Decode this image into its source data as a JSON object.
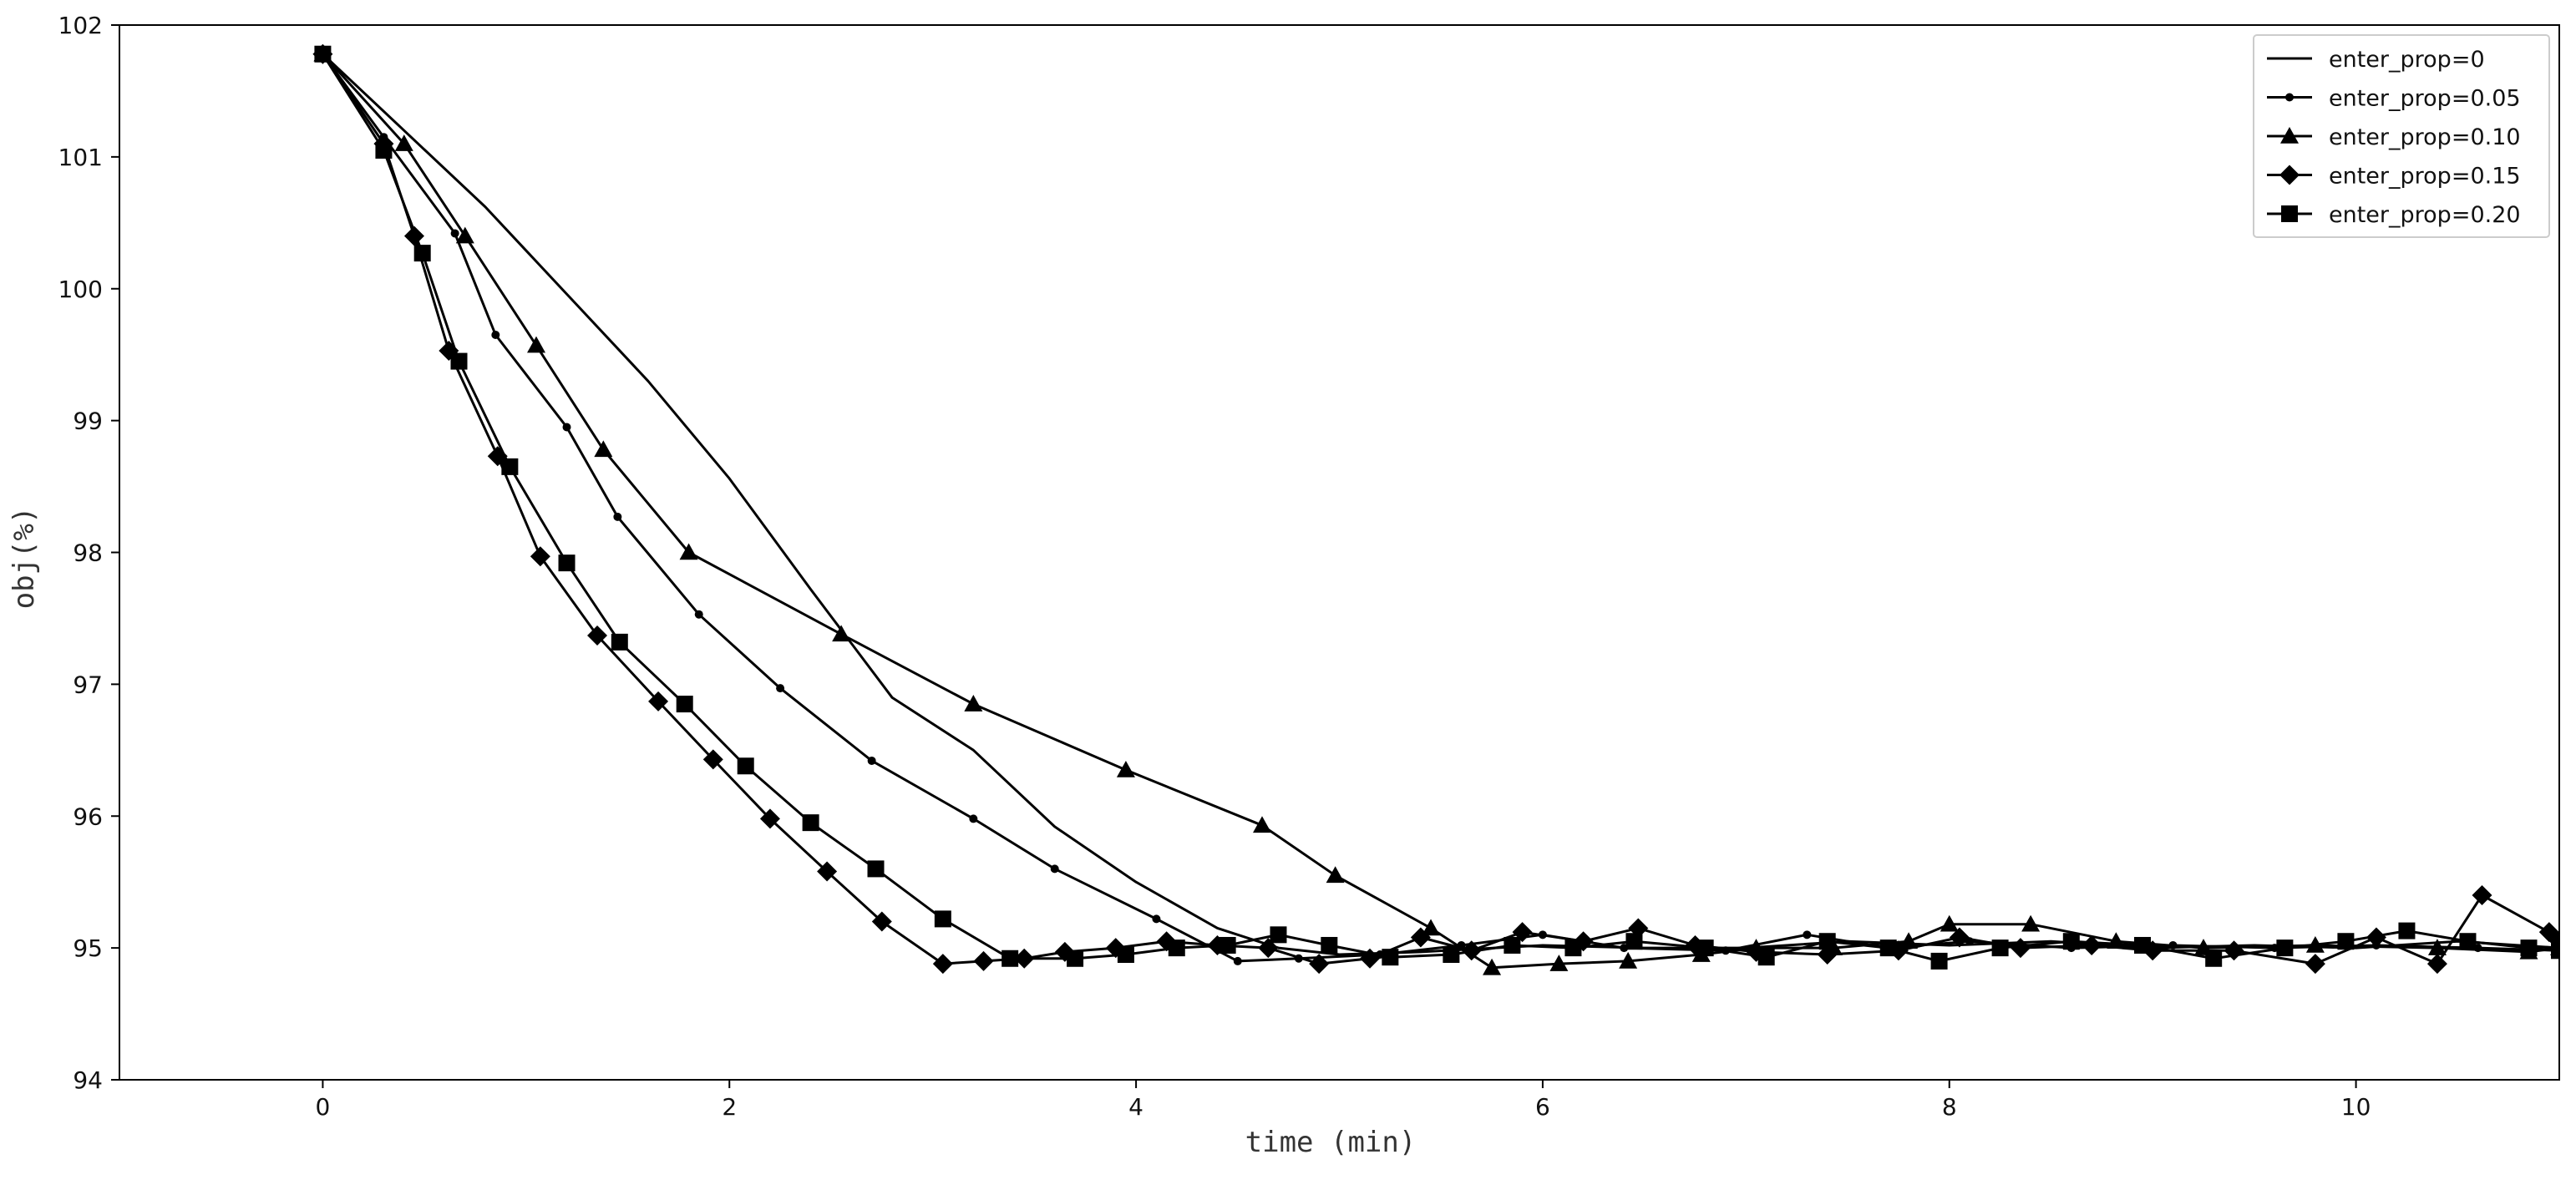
{
  "chart_data": {
    "type": "line",
    "xlabel": "time (min)",
    "ylabel": "obj(%)",
    "xlim": [
      -1.0,
      11.0
    ],
    "ylim": [
      94,
      102
    ],
    "xticks": [
      0,
      2,
      4,
      6,
      8,
      10
    ],
    "yticks": [
      94,
      95,
      96,
      97,
      98,
      99,
      100,
      101,
      102
    ],
    "legend": "top-right",
    "grid": false,
    "line_color": "#000000",
    "series": [
      {
        "name": "enter_prop=0",
        "marker": "none",
        "x": [
          0,
          0.4,
          0.8,
          1.2,
          1.6,
          2.0,
          2.4,
          2.8,
          3.2,
          3.6,
          4.0,
          4.4,
          4.7,
          5.0,
          5.4,
          6.0,
          6.5,
          7.0,
          7.5,
          8.0,
          8.5,
          9.0,
          9.5,
          10.0,
          10.5,
          11.0
        ],
        "y": [
          101.78,
          101.2,
          100.62,
          99.96,
          99.3,
          98.56,
          97.72,
          96.9,
          96.5,
          95.92,
          95.5,
          95.15,
          95.0,
          94.95,
          94.97,
          95.02,
          95.0,
          95.0,
          95.05,
          95.02,
          95.05,
          95.0,
          95.02,
          95.0,
          95.05,
          95.0
        ]
      },
      {
        "name": "enter_prop=0.05",
        "marker": "dot",
        "x": [
          0,
          0.3,
          0.65,
          0.85,
          1.2,
          1.45,
          1.85,
          2.25,
          2.7,
          3.2,
          3.6,
          4.1,
          4.5,
          4.8,
          5.2,
          5.6,
          6.0,
          6.4,
          6.9,
          7.3,
          7.7,
          8.1,
          8.6,
          9.1,
          9.6,
          10.1,
          10.6,
          11.0
        ],
        "y": [
          101.78,
          101.15,
          100.42,
          99.65,
          98.95,
          98.27,
          97.53,
          96.97,
          96.42,
          95.98,
          95.6,
          95.22,
          94.9,
          94.92,
          94.95,
          95.02,
          95.1,
          95.0,
          94.98,
          95.1,
          95.0,
          95.05,
          95.0,
          95.02,
          95.0,
          95.02,
          95.0,
          94.98
        ]
      },
      {
        "name": "enter_prop=0.10",
        "marker": "triangle",
        "x": [
          0,
          0.4,
          0.7,
          1.05,
          1.38,
          1.8,
          2.55,
          3.2,
          3.95,
          4.62,
          4.98,
          5.45,
          5.75,
          6.08,
          6.42,
          6.78,
          7.05,
          7.43,
          7.8,
          8.0,
          8.4,
          8.82,
          9.25,
          9.8,
          10.4,
          10.85,
          11.0
        ],
        "y": [
          101.78,
          101.1,
          100.4,
          99.57,
          98.78,
          98.0,
          97.38,
          96.85,
          96.35,
          95.93,
          95.55,
          95.15,
          94.85,
          94.88,
          94.9,
          94.95,
          95.0,
          95.0,
          95.05,
          95.18,
          95.18,
          95.05,
          95.0,
          95.02,
          95.0,
          94.97,
          95.0
        ]
      },
      {
        "name": "enter_prop=0.15",
        "marker": "diamond",
        "x": [
          0,
          0.3,
          0.45,
          0.62,
          0.86,
          1.07,
          1.35,
          1.65,
          1.92,
          2.2,
          2.48,
          2.75,
          3.05,
          3.25,
          3.45,
          3.65,
          3.9,
          4.15,
          4.4,
          4.65,
          4.9,
          5.15,
          5.4,
          5.65,
          5.9,
          6.2,
          6.47,
          6.75,
          7.05,
          7.4,
          7.75,
          8.05,
          8.35,
          8.7,
          9.0,
          9.4,
          9.8,
          10.1,
          10.4,
          10.62,
          10.95,
          11.0
        ],
        "y": [
          101.78,
          101.1,
          100.4,
          99.53,
          98.73,
          97.97,
          97.37,
          96.87,
          96.43,
          95.98,
          95.58,
          95.2,
          94.88,
          94.9,
          94.92,
          94.97,
          95.0,
          95.05,
          95.02,
          95.0,
          94.88,
          94.92,
          95.08,
          94.98,
          95.12,
          95.05,
          95.15,
          95.02,
          94.97,
          94.95,
          94.98,
          95.08,
          95.0,
          95.02,
          94.98,
          94.98,
          94.88,
          95.08,
          94.88,
          95.4,
          95.12,
          95.05
        ]
      },
      {
        "name": "enter_prop=0.20",
        "marker": "square",
        "x": [
          0,
          0.3,
          0.49,
          0.67,
          0.92,
          1.2,
          1.46,
          1.78,
          2.08,
          2.4,
          2.72,
          3.05,
          3.38,
          3.7,
          3.95,
          4.2,
          4.45,
          4.7,
          4.95,
          5.25,
          5.55,
          5.85,
          6.15,
          6.45,
          6.8,
          7.1,
          7.4,
          7.7,
          7.95,
          8.25,
          8.6,
          8.95,
          9.3,
          9.65,
          9.95,
          10.25,
          10.55,
          10.85,
          11.0
        ],
        "y": [
          101.78,
          101.05,
          100.27,
          99.45,
          98.65,
          97.92,
          97.32,
          96.85,
          96.38,
          95.95,
          95.6,
          95.22,
          94.92,
          94.92,
          94.95,
          95.0,
          95.02,
          95.1,
          95.02,
          94.93,
          94.95,
          95.02,
          95.0,
          95.05,
          95.0,
          94.93,
          95.05,
          95.0,
          94.9,
          95.0,
          95.05,
          95.02,
          94.92,
          95.0,
          95.05,
          95.13,
          95.05,
          95.0,
          94.98
        ]
      }
    ]
  }
}
